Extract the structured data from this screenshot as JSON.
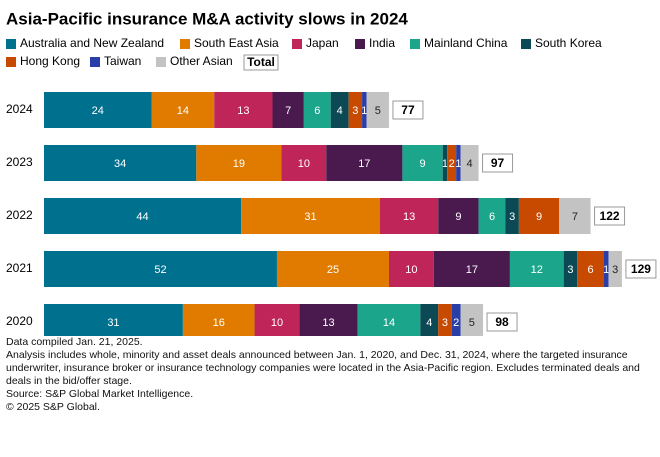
{
  "chart_data": {
    "type": "stacked-bar-horizontal",
    "title": "Asia-Pacific insurance M&A activity slows in 2024",
    "categories": [
      "2024",
      "2023",
      "2022",
      "2021",
      "2020"
    ],
    "series": [
      {
        "name": "Australia and New Zealand",
        "color": "#00708f",
        "values": [
          24,
          34,
          44,
          52,
          31
        ]
      },
      {
        "name": "South East Asia",
        "color": "#e07b00",
        "values": [
          14,
          19,
          31,
          25,
          16
        ]
      },
      {
        "name": "Japan",
        "color": "#c0255a",
        "values": [
          13,
          10,
          13,
          10,
          10
        ]
      },
      {
        "name": "India",
        "color": "#4a1a4f",
        "values": [
          7,
          17,
          9,
          17,
          13
        ]
      },
      {
        "name": "Mainland China",
        "color": "#1ba58a",
        "values": [
          6,
          9,
          6,
          12,
          14
        ]
      },
      {
        "name": "South Korea",
        "color": "#0b4a55",
        "values": [
          4,
          1,
          3,
          3,
          4
        ]
      },
      {
        "name": "Hong Kong",
        "color": "#c84a00",
        "values": [
          3,
          2,
          9,
          6,
          3
        ]
      },
      {
        "name": "Taiwan",
        "color": "#2a3ea8",
        "values": [
          1,
          1,
          0,
          1,
          2
        ]
      },
      {
        "name": "Other Asian",
        "color": "#c3c3c3",
        "values": [
          5,
          4,
          7,
          3,
          5
        ]
      }
    ],
    "total_label": "Total",
    "totals": [
      77,
      97,
      122,
      129,
      98
    ]
  },
  "notes": [
    "Data compiled Jan. 21, 2025.",
    "Analysis includes whole, minority and asset deals announced between Jan. 1, 2020, and Dec. 31, 2024, where the targeted insurance underwriter, insurance broker or insurance technology companies were located in the Asia-Pacific region. Excludes terminated deals and deals in the bid/offer stage.",
    "Source: S&P Global Market Intelligence.",
    "© 2025 S&P Global."
  ]
}
